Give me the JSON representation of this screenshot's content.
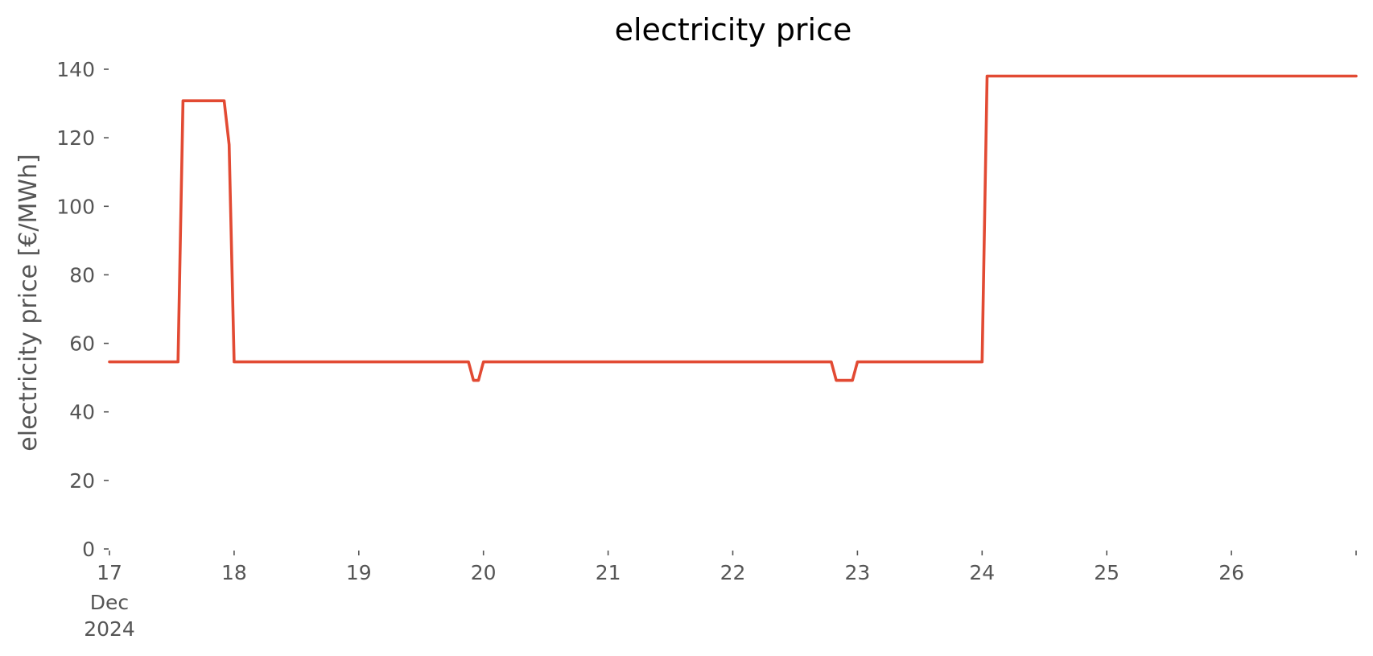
{
  "chart_data": {
    "type": "line",
    "title": "electricity price",
    "xlabel": "",
    "ylabel": "electricity price [€/MWh]",
    "x_unit": "days (December 2024)",
    "xlim": [
      17,
      27
    ],
    "ylim": [
      0,
      140
    ],
    "yticks": [
      0,
      20,
      40,
      60,
      80,
      100,
      120,
      140
    ],
    "xticks": [
      {
        "value": 17,
        "label": "17",
        "sublabels": [
          "Dec",
          "2024"
        ]
      },
      {
        "value": 18,
        "label": "18"
      },
      {
        "value": 19,
        "label": "19"
      },
      {
        "value": 20,
        "label": "20"
      },
      {
        "value": 21,
        "label": "21"
      },
      {
        "value": 22,
        "label": "22"
      },
      {
        "value": 23,
        "label": "23"
      },
      {
        "value": 24,
        "label": "24"
      },
      {
        "value": 25,
        "label": "25"
      },
      {
        "value": 26,
        "label": "26"
      },
      {
        "value": 27,
        "label": ""
      }
    ],
    "grid": false,
    "legend": "none",
    "series": [
      {
        "color": "#e24a33",
        "points": [
          [
            17.0,
            54.6
          ],
          [
            17.55,
            54.6
          ],
          [
            17.59,
            130.8
          ],
          [
            17.92,
            130.8
          ],
          [
            17.96,
            118.0
          ],
          [
            18.0,
            54.6
          ],
          [
            19.88,
            54.6
          ],
          [
            19.92,
            49.2
          ],
          [
            19.96,
            49.2
          ],
          [
            20.0,
            54.6
          ],
          [
            22.79,
            54.6
          ],
          [
            22.83,
            49.2
          ],
          [
            22.96,
            49.2
          ],
          [
            23.0,
            54.6
          ],
          [
            24.0,
            54.6
          ],
          [
            24.04,
            138.0
          ],
          [
            27.0,
            138.0
          ]
        ]
      }
    ]
  }
}
